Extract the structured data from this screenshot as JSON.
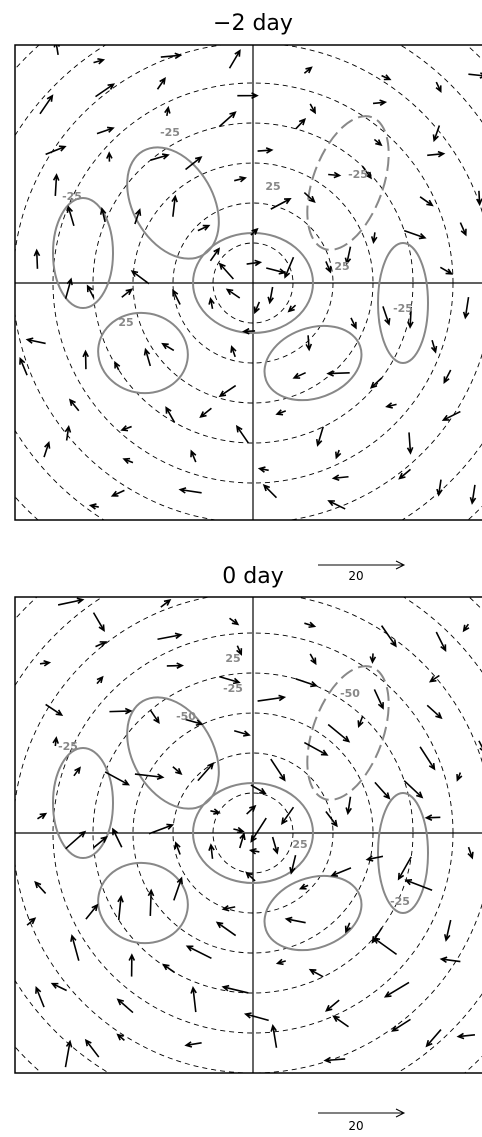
{
  "panels": [
    {
      "title": "−2 day",
      "contour_labels": [
        "-25",
        "25",
        "-25",
        "25",
        "-25",
        "25",
        "-25"
      ]
    },
    {
      "title": "0 day",
      "reference_vector": "20",
      "contour_labels": [
        "-25",
        "-50",
        "25",
        "-50",
        "-25",
        "25",
        "-25"
      ]
    }
  ],
  "reference_vector": "20"
}
